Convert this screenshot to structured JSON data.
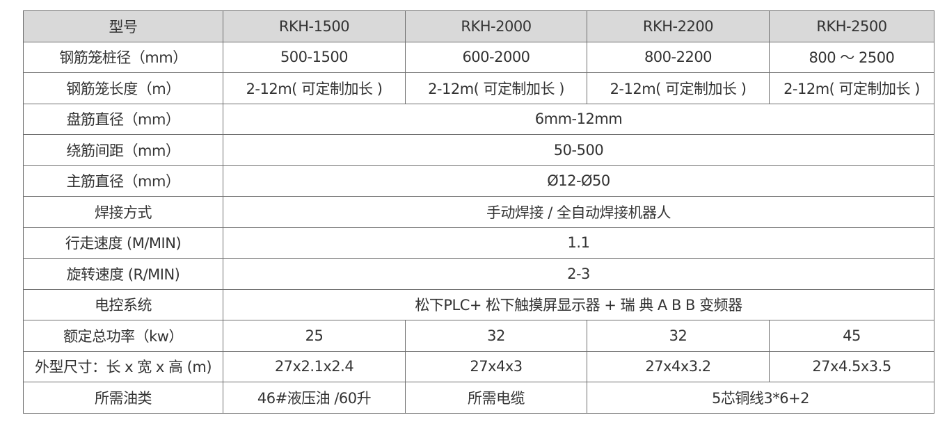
{
  "header": [
    "型号",
    "RKH-1500",
    "RKH-2000",
    "RKH-2200",
    "RKH-2500"
  ],
  "rows": [
    {
      "label": "钢筋笼桩径（mm）",
      "cells": [
        "500-1500",
        "600-2000",
        "800-2200",
        "800 ～ 2500"
      ]
    },
    {
      "label": "钢筋笼长度（m）",
      "cells": [
        "2-12m( 可定制加长 )",
        "2-12m( 可定制加长 )",
        "2-12m( 可定制加长 )",
        "2-12m( 可定制加长 )"
      ]
    },
    {
      "label": "盘筋直径（mm）",
      "cells": [
        "6mm-12mm"
      ]
    },
    {
      "label": "绕筋间距（mm）",
      "cells": [
        "50-500"
      ]
    },
    {
      "label": "主筋直径（mm）",
      "cells": [
        "Ø12-Ø50"
      ]
    },
    {
      "label": "焊接方式",
      "cells": [
        "手动焊接 / 全自动焊接机器人"
      ]
    },
    {
      "label": "行走速度 (M/MIN)",
      "cells": [
        "1.1"
      ]
    },
    {
      "label": "旋转速度 (R/MIN)",
      "cells": [
        "2-3"
      ]
    },
    {
      "label": "电控系统",
      "cells": [
        "松下PLC+ 松下触摸屏显示器 + 瑞 典 A B B 变频器"
      ]
    },
    {
      "label": "额定总功率（kw）",
      "cells": [
        "25",
        "32",
        "32",
        "45"
      ]
    },
    {
      "label": "外型尺寸：长 x 宽 x 高 (m)",
      "cells": [
        "27x2.1x2.4",
        "27x4x3",
        "27x4x3.2",
        "27x4.5x3.5"
      ]
    },
    {
      "label": "所需油类",
      "cells": [
        "46#液压油 /60升",
        "所需电缆",
        "5芯铜线3*6+2"
      ]
    }
  ]
}
